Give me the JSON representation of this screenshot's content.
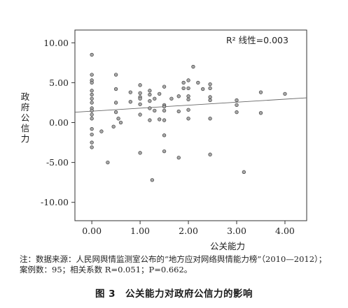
{
  "chart_data": {
    "type": "scatter",
    "annotation": "R² 线性=0.003",
    "xlabel": "公关能力",
    "ylabel": "政府公信力",
    "xlim": [
      -0.35,
      4.45
    ],
    "ylim": [
      -12.3,
      11.6
    ],
    "xticks": [
      0,
      1,
      2,
      3,
      4
    ],
    "xtick_labels": [
      "0.00",
      "1.00",
      "2.00",
      "3.00",
      "4.00"
    ],
    "yticks": [
      10,
      5,
      0,
      -5,
      -10
    ],
    "ytick_labels": [
      "10.00",
      "5.00",
      "0.00",
      "-5.00",
      "-10.00"
    ],
    "grid": false,
    "fit_line": {
      "x": [
        -0.35,
        4.45
      ],
      "y": [
        1.3,
        3.1
      ]
    },
    "points": [
      {
        "x": 0.0,
        "y": 8.5
      },
      {
        "x": 0.0,
        "y": 6.0
      },
      {
        "x": 0.0,
        "y": 5.3
      },
      {
        "x": 0.0,
        "y": 5.0
      },
      {
        "x": 0.0,
        "y": 4.0
      },
      {
        "x": 0.0,
        "y": 3.5
      },
      {
        "x": 0.0,
        "y": 3.0
      },
      {
        "x": 0.0,
        "y": 2.5
      },
      {
        "x": 0.0,
        "y": 1.8
      },
      {
        "x": 0.0,
        "y": 1.5
      },
      {
        "x": 0.0,
        "y": 1.0
      },
      {
        "x": 0.0,
        "y": 0.5
      },
      {
        "x": 0.0,
        "y": -0.8
      },
      {
        "x": 0.0,
        "y": -1.5
      },
      {
        "x": 0.0,
        "y": -2.5
      },
      {
        "x": 0.0,
        "y": -3.1
      },
      {
        "x": 0.2,
        "y": -1.1
      },
      {
        "x": 0.33,
        "y": -5.0
      },
      {
        "x": 0.45,
        "y": -0.5
      },
      {
        "x": 0.5,
        "y": 6.0
      },
      {
        "x": 0.5,
        "y": 4.2
      },
      {
        "x": 0.5,
        "y": 2.5
      },
      {
        "x": 0.5,
        "y": 1.3
      },
      {
        "x": 0.55,
        "y": 0.5
      },
      {
        "x": 0.6,
        "y": 0.0
      },
      {
        "x": 0.8,
        "y": 3.8
      },
      {
        "x": 0.8,
        "y": 2.6
      },
      {
        "x": 1.0,
        "y": 4.7
      },
      {
        "x": 1.0,
        "y": 3.7
      },
      {
        "x": 1.0,
        "y": 3.2
      },
      {
        "x": 1.0,
        "y": 3.0
      },
      {
        "x": 1.0,
        "y": 2.3
      },
      {
        "x": 1.0,
        "y": 1.0
      },
      {
        "x": 1.0,
        "y": -3.8
      },
      {
        "x": 1.2,
        "y": 4.0
      },
      {
        "x": 1.2,
        "y": 3.5
      },
      {
        "x": 1.2,
        "y": 2.7
      },
      {
        "x": 1.2,
        "y": 1.8
      },
      {
        "x": 1.2,
        "y": 0.3
      },
      {
        "x": 1.25,
        "y": -7.2
      },
      {
        "x": 1.3,
        "y": 3.0
      },
      {
        "x": 1.3,
        "y": 1.5
      },
      {
        "x": 1.4,
        "y": 3.6
      },
      {
        "x": 1.4,
        "y": 0.4
      },
      {
        "x": 1.5,
        "y": 4.5
      },
      {
        "x": 1.5,
        "y": 2.2
      },
      {
        "x": 1.5,
        "y": 2.0
      },
      {
        "x": 1.5,
        "y": 1.5
      },
      {
        "x": 1.5,
        "y": 0.3
      },
      {
        "x": 1.5,
        "y": -1.6
      },
      {
        "x": 1.5,
        "y": -3.6
      },
      {
        "x": 1.65,
        "y": 3.0
      },
      {
        "x": 1.8,
        "y": 3.3
      },
      {
        "x": 1.8,
        "y": 1.4
      },
      {
        "x": 1.8,
        "y": -4.4
      },
      {
        "x": 1.9,
        "y": 5.0
      },
      {
        "x": 1.9,
        "y": 4.3
      },
      {
        "x": 2.0,
        "y": 5.3
      },
      {
        "x": 2.0,
        "y": 4.3
      },
      {
        "x": 2.0,
        "y": 3.3
      },
      {
        "x": 2.0,
        "y": 2.9
      },
      {
        "x": 2.0,
        "y": 1.6
      },
      {
        "x": 2.0,
        "y": 0.5
      },
      {
        "x": 2.1,
        "y": 7.0
      },
      {
        "x": 2.2,
        "y": 5.0
      },
      {
        "x": 2.3,
        "y": 4.2
      },
      {
        "x": 2.45,
        "y": 4.8
      },
      {
        "x": 2.45,
        "y": 4.3
      },
      {
        "x": 2.45,
        "y": 3.2
      },
      {
        "x": 2.45,
        "y": 2.8
      },
      {
        "x": 2.45,
        "y": 0.5
      },
      {
        "x": 2.45,
        "y": -4.0
      },
      {
        "x": 3.0,
        "y": 2.8
      },
      {
        "x": 3.0,
        "y": 2.2
      },
      {
        "x": 3.0,
        "y": 1.3
      },
      {
        "x": 3.15,
        "y": -6.2
      },
      {
        "x": 3.5,
        "y": 3.8
      },
      {
        "x": 3.5,
        "y": 1.2
      },
      {
        "x": 4.0,
        "y": 3.6
      }
    ]
  },
  "note": "注：数据来源：人民网舆情监测室公布的“地方应对网络舆情能力榜”（2010—2012）；案例数：95；相关系数 R=0.051；P=0.662。",
  "caption": {
    "number": "图 3",
    "text": "公关能力对政府公信力的影响"
  }
}
